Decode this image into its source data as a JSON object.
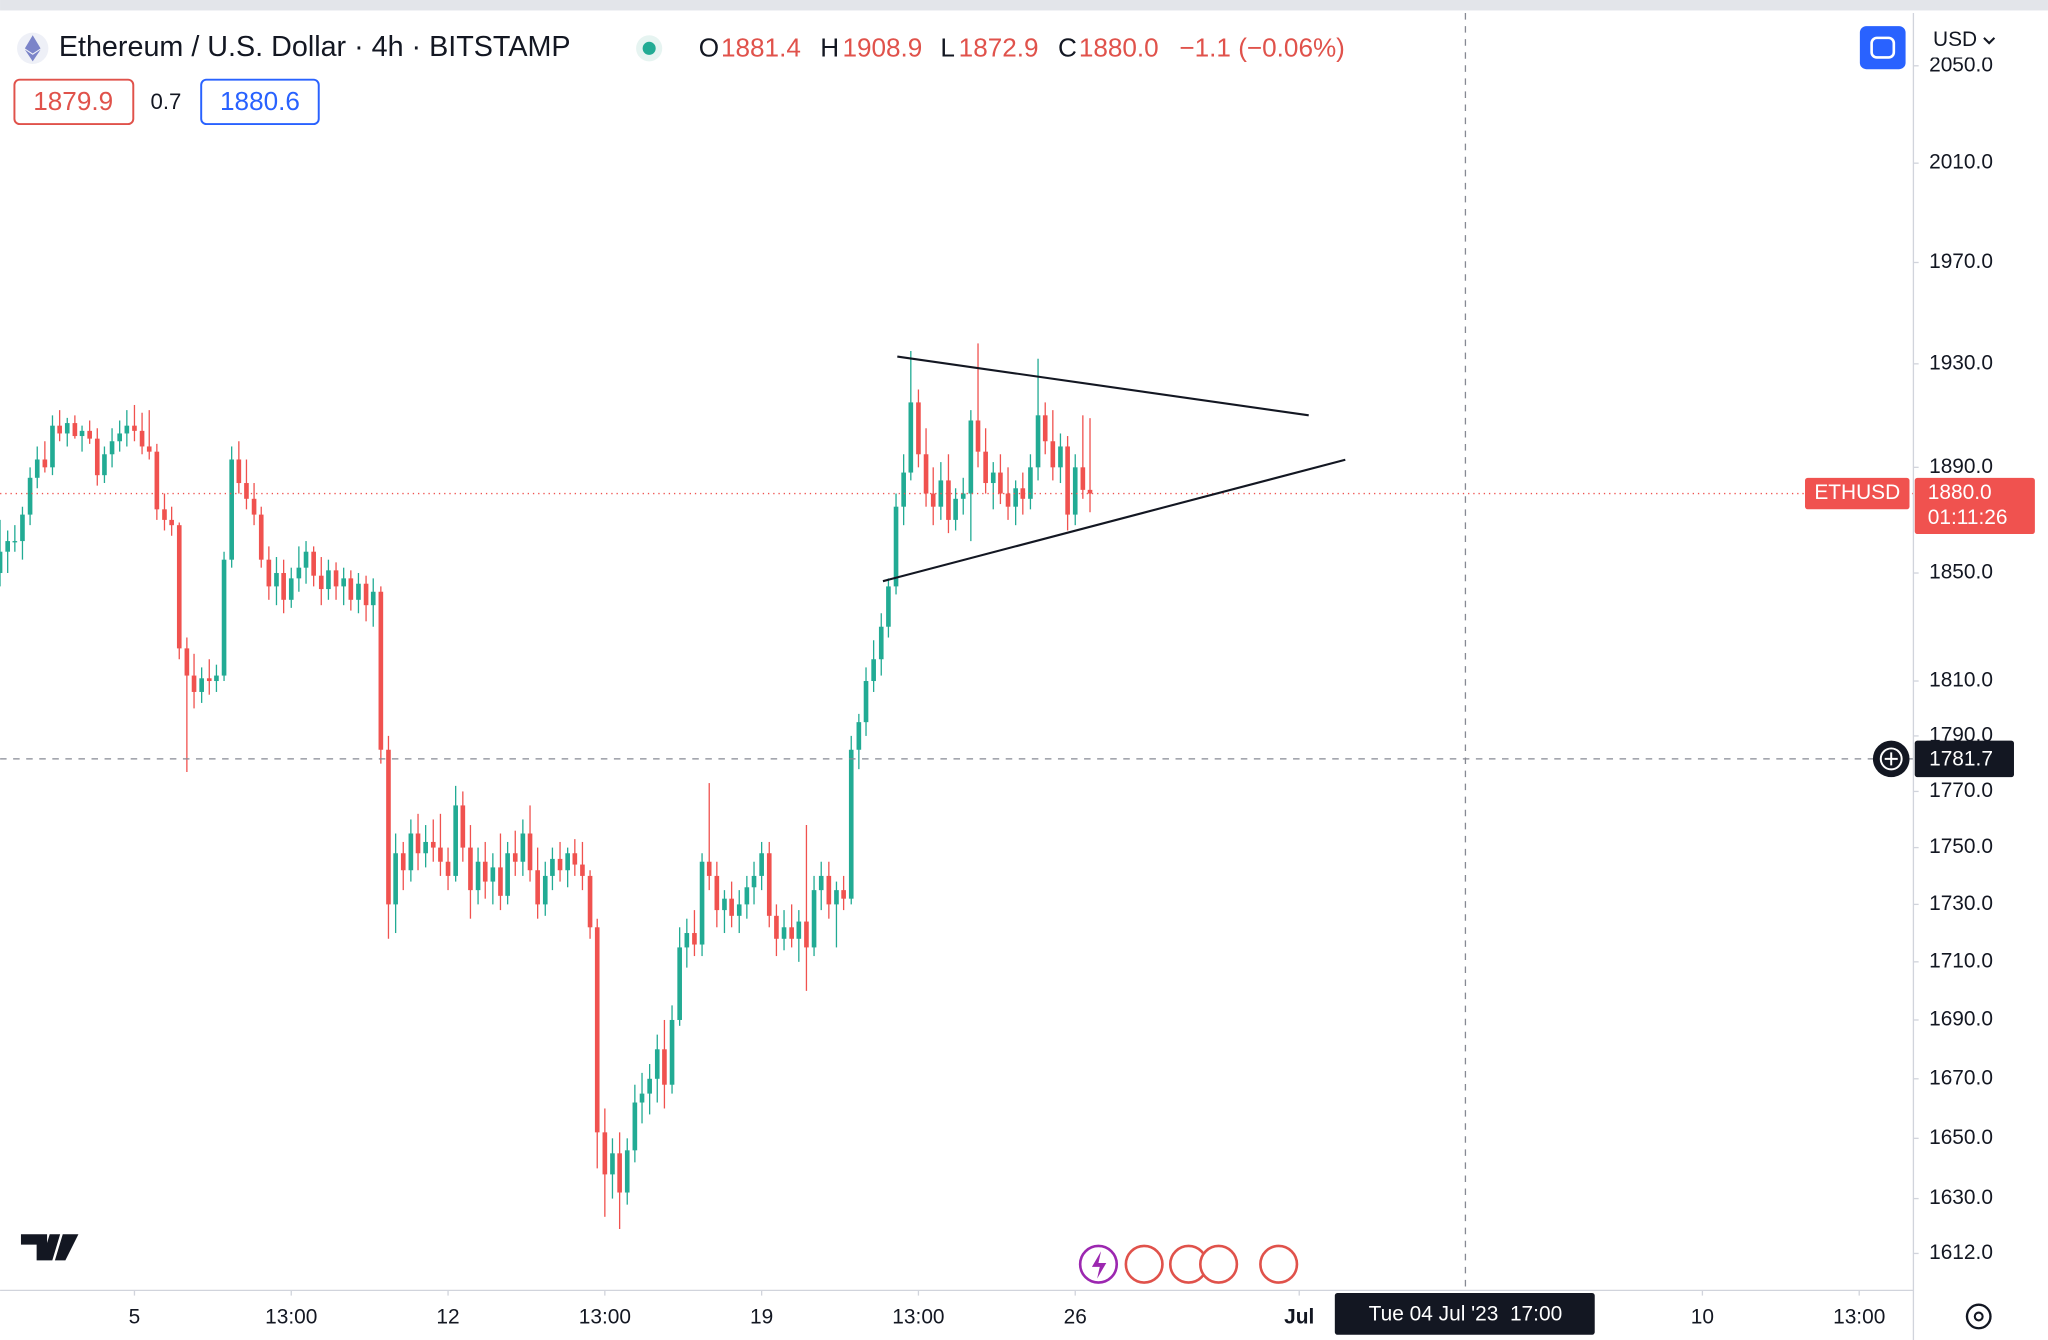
{
  "header": {
    "symbol_title": "Ethereum / U.S. Dollar · 4h · BITSTAMP",
    "ohlc": [
      {
        "key": "O",
        "value": "1881.4"
      },
      {
        "key": "H",
        "value": "1908.9"
      },
      {
        "key": "L",
        "value": "1872.9"
      },
      {
        "key": "C",
        "value": "1880.0"
      }
    ],
    "change": "−1.1 (−0.06%)",
    "bid": "1879.9",
    "spread": "0.7",
    "ask": "1880.6",
    "currency": "USD"
  },
  "chart_data": {
    "type": "candlestick",
    "log_scale": true,
    "grid": false,
    "up_color": "#22ab94",
    "down_color": "#f0524f",
    "xlim": [
      2,
      44.71
    ],
    "ylim": [
      1600,
      2072
    ],
    "xticks": [
      5,
      {
        "value": 8.5,
        "label": "13:00"
      },
      12,
      {
        "value": 15.5,
        "label": "13:00"
      },
      19,
      {
        "value": 22.5,
        "label": "13:00"
      },
      26,
      {
        "value": 31,
        "label": "Jul"
      },
      {
        "value": 40,
        "label": "10"
      },
      {
        "value": 43.5,
        "label": "13:00"
      }
    ],
    "yticks": [
      {
        "value": 2050,
        "label": "2050.0"
      },
      {
        "value": 2010,
        "label": "2010.0"
      },
      {
        "value": 1970,
        "label": "1970.0"
      },
      {
        "value": 1930,
        "label": "1930.0"
      },
      {
        "value": 1890,
        "label": "1890.0"
      },
      {
        "value": 1850,
        "label": "1850.0"
      },
      {
        "value": 1810,
        "label": "1810.0"
      },
      {
        "value": 1790,
        "label": "1790.0"
      },
      {
        "value": 1770,
        "label": "1770.0"
      },
      {
        "value": 1750,
        "label": "1750.0"
      },
      {
        "value": 1730,
        "label": "1730.0"
      },
      {
        "value": 1710,
        "label": "1710.0"
      },
      {
        "value": 1690,
        "label": "1690.0"
      },
      {
        "value": 1670,
        "label": "1670.0"
      },
      {
        "value": 1650,
        "label": "1650.0"
      },
      {
        "value": 1630,
        "label": "1630.0"
      },
      {
        "value": 1612,
        "label": "1612.0"
      }
    ],
    "last_price": {
      "symbol": "ETHUSD",
      "value": 1880,
      "label": "1880.0",
      "countdown": "01:11:26"
    },
    "crosshair": {
      "x": 34.71,
      "x_label": "Tue 04 Jul '23  17:00",
      "y": 1781.7
    },
    "candles": [
      [
        2,
        1850,
        1870,
        1845,
        1858
      ],
      [
        2.17,
        1858,
        1866,
        1850,
        1862
      ],
      [
        2.33,
        1862,
        1868,
        1858,
        1862
      ],
      [
        2.5,
        1862,
        1875,
        1855,
        1872
      ],
      [
        2.67,
        1872,
        1890,
        1868,
        1886
      ],
      [
        2.83,
        1886,
        1898,
        1882,
        1893
      ],
      [
        3,
        1893,
        1900,
        1888,
        1890
      ],
      [
        3.17,
        1890,
        1910,
        1887,
        1906
      ],
      [
        3.33,
        1906,
        1912,
        1900,
        1903
      ],
      [
        3.5,
        1903,
        1909,
        1898,
        1907
      ],
      [
        3.67,
        1907,
        1910,
        1901,
        1902
      ],
      [
        3.83,
        1902,
        1906,
        1896,
        1904
      ],
      [
        4,
        1904,
        1908,
        1899,
        1901
      ],
      [
        4.17,
        1901,
        1905,
        1883,
        1887
      ],
      [
        4.33,
        1887,
        1898,
        1884,
        1895
      ],
      [
        4.5,
        1895,
        1905,
        1890,
        1900
      ],
      [
        4.67,
        1900,
        1908,
        1896,
        1903
      ],
      [
        4.83,
        1903,
        1912,
        1898,
        1906
      ],
      [
        5,
        1906,
        1914,
        1900,
        1904
      ],
      [
        5.17,
        1904,
        1911,
        1895,
        1898
      ],
      [
        5.33,
        1898,
        1912,
        1893,
        1896
      ],
      [
        5.5,
        1896,
        1899,
        1870,
        1874
      ],
      [
        5.67,
        1874,
        1880,
        1866,
        1870
      ],
      [
        5.83,
        1870,
        1875,
        1864,
        1868
      ],
      [
        6,
        1868,
        1869,
        1818,
        1822
      ],
      [
        6.17,
        1822,
        1826,
        1777,
        1812
      ],
      [
        6.33,
        1812,
        1820,
        1800,
        1806
      ],
      [
        6.5,
        1806,
        1815,
        1802,
        1811
      ],
      [
        6.67,
        1811,
        1818,
        1805,
        1810
      ],
      [
        6.83,
        1810,
        1816,
        1806,
        1812
      ],
      [
        7,
        1812,
        1858,
        1810,
        1855
      ],
      [
        7.17,
        1855,
        1898,
        1852,
        1893
      ],
      [
        7.33,
        1893,
        1900,
        1880,
        1884
      ],
      [
        7.5,
        1884,
        1893,
        1874,
        1878
      ],
      [
        7.67,
        1878,
        1884,
        1868,
        1872
      ],
      [
        7.83,
        1872,
        1875,
        1852,
        1855
      ],
      [
        8,
        1855,
        1860,
        1840,
        1845
      ],
      [
        8.17,
        1845,
        1856,
        1838,
        1850
      ],
      [
        8.33,
        1850,
        1855,
        1835,
        1840
      ],
      [
        8.5,
        1840,
        1852,
        1837,
        1848
      ],
      [
        8.67,
        1848,
        1860,
        1843,
        1852
      ],
      [
        8.83,
        1852,
        1862,
        1846,
        1858
      ],
      [
        9,
        1858,
        1860,
        1845,
        1849
      ],
      [
        9.17,
        1849,
        1856,
        1838,
        1844
      ],
      [
        9.33,
        1844,
        1855,
        1840,
        1851
      ],
      [
        9.5,
        1851,
        1854,
        1840,
        1845
      ],
      [
        9.67,
        1845,
        1852,
        1838,
        1848
      ],
      [
        9.83,
        1848,
        1851,
        1836,
        1840
      ],
      [
        10,
        1840,
        1850,
        1835,
        1846
      ],
      [
        10.17,
        1846,
        1849,
        1832,
        1838
      ],
      [
        10.33,
        1838,
        1848,
        1830,
        1843
      ],
      [
        10.5,
        1843,
        1845,
        1780,
        1785
      ],
      [
        10.67,
        1785,
        1790,
        1718,
        1730
      ],
      [
        10.83,
        1730,
        1755,
        1720,
        1748
      ],
      [
        11,
        1748,
        1752,
        1735,
        1742
      ],
      [
        11.17,
        1742,
        1760,
        1738,
        1755
      ],
      [
        11.33,
        1755,
        1762,
        1742,
        1748
      ],
      [
        11.5,
        1748,
        1758,
        1743,
        1752
      ],
      [
        11.67,
        1752,
        1760,
        1745,
        1750
      ],
      [
        11.83,
        1750,
        1762,
        1740,
        1745
      ],
      [
        12,
        1745,
        1750,
        1735,
        1740
      ],
      [
        12.17,
        1740,
        1772,
        1738,
        1765
      ],
      [
        12.33,
        1765,
        1770,
        1745,
        1750
      ],
      [
        12.5,
        1750,
        1758,
        1725,
        1735
      ],
      [
        12.67,
        1735,
        1750,
        1730,
        1745
      ],
      [
        12.83,
        1745,
        1752,
        1732,
        1738
      ],
      [
        13,
        1738,
        1748,
        1730,
        1743
      ],
      [
        13.17,
        1743,
        1755,
        1728,
        1733
      ],
      [
        13.33,
        1733,
        1752,
        1730,
        1748
      ],
      [
        13.5,
        1748,
        1756,
        1740,
        1745
      ],
      [
        13.67,
        1745,
        1760,
        1740,
        1755
      ],
      [
        13.83,
        1755,
        1765,
        1738,
        1742
      ],
      [
        14,
        1742,
        1750,
        1725,
        1730
      ],
      [
        14.17,
        1730,
        1745,
        1726,
        1740
      ],
      [
        14.33,
        1740,
        1750,
        1735,
        1746
      ],
      [
        14.5,
        1746,
        1752,
        1738,
        1742
      ],
      [
        14.67,
        1742,
        1750,
        1736,
        1748
      ],
      [
        14.83,
        1748,
        1753,
        1740,
        1744
      ],
      [
        15,
        1744,
        1752,
        1735,
        1740
      ],
      [
        15.17,
        1740,
        1742,
        1718,
        1722
      ],
      [
        15.33,
        1722,
        1725,
        1640,
        1652
      ],
      [
        15.5,
        1652,
        1660,
        1624,
        1638
      ],
      [
        15.67,
        1638,
        1650,
        1630,
        1645
      ],
      [
        15.83,
        1645,
        1652,
        1620,
        1632
      ],
      [
        16,
        1632,
        1650,
        1628,
        1646
      ],
      [
        16.17,
        1646,
        1668,
        1642,
        1662
      ],
      [
        16.33,
        1662,
        1672,
        1655,
        1665
      ],
      [
        16.5,
        1665,
        1675,
        1658,
        1670
      ],
      [
        16.67,
        1670,
        1685,
        1662,
        1680
      ],
      [
        16.83,
        1680,
        1690,
        1660,
        1668
      ],
      [
        17,
        1668,
        1695,
        1665,
        1690
      ],
      [
        17.17,
        1690,
        1722,
        1688,
        1715
      ],
      [
        17.33,
        1715,
        1725,
        1708,
        1720
      ],
      [
        17.5,
        1720,
        1728,
        1712,
        1716
      ],
      [
        17.67,
        1716,
        1748,
        1712,
        1745
      ],
      [
        17.83,
        1745,
        1773,
        1735,
        1740
      ],
      [
        18,
        1740,
        1745,
        1722,
        1728
      ],
      [
        18.17,
        1728,
        1735,
        1720,
        1732
      ],
      [
        18.33,
        1732,
        1738,
        1722,
        1726
      ],
      [
        18.5,
        1726,
        1735,
        1720,
        1730
      ],
      [
        18.67,
        1730,
        1740,
        1725,
        1736
      ],
      [
        18.83,
        1736,
        1745,
        1730,
        1740
      ],
      [
        19,
        1740,
        1752,
        1735,
        1748
      ],
      [
        19.17,
        1748,
        1752,
        1722,
        1726
      ],
      [
        19.33,
        1726,
        1730,
        1712,
        1718
      ],
      [
        19.5,
        1718,
        1728,
        1714,
        1722
      ],
      [
        19.67,
        1722,
        1730,
        1715,
        1718
      ],
      [
        19.83,
        1718,
        1728,
        1710,
        1724
      ],
      [
        20,
        1724,
        1758,
        1700,
        1715
      ],
      [
        20.17,
        1715,
        1740,
        1712,
        1735
      ],
      [
        20.33,
        1735,
        1745,
        1728,
        1740
      ],
      [
        20.5,
        1740,
        1745,
        1725,
        1730
      ],
      [
        20.67,
        1730,
        1738,
        1715,
        1735
      ],
      [
        20.83,
        1735,
        1740,
        1728,
        1732
      ],
      [
        21,
        1732,
        1790,
        1730,
        1785
      ],
      [
        21.17,
        1785,
        1798,
        1778,
        1795
      ],
      [
        21.33,
        1795,
        1815,
        1790,
        1810
      ],
      [
        21.5,
        1810,
        1825,
        1806,
        1818
      ],
      [
        21.67,
        1818,
        1835,
        1812,
        1830
      ],
      [
        21.83,
        1830,
        1848,
        1826,
        1845
      ],
      [
        22,
        1845,
        1880,
        1842,
        1875
      ],
      [
        22.17,
        1875,
        1895,
        1868,
        1888
      ],
      [
        22.33,
        1888,
        1935,
        1885,
        1915
      ],
      [
        22.5,
        1915,
        1920,
        1890,
        1895
      ],
      [
        22.67,
        1895,
        1905,
        1875,
        1880
      ],
      [
        22.83,
        1880,
        1890,
        1868,
        1875
      ],
      [
        23,
        1875,
        1892,
        1870,
        1885
      ],
      [
        23.17,
        1885,
        1895,
        1865,
        1870
      ],
      [
        23.33,
        1870,
        1882,
        1866,
        1878
      ],
      [
        23.5,
        1878,
        1886,
        1872,
        1880
      ],
      [
        23.67,
        1880,
        1912,
        1862,
        1908
      ],
      [
        23.83,
        1908,
        1938,
        1890,
        1896
      ],
      [
        24,
        1896,
        1905,
        1880,
        1884
      ],
      [
        24.17,
        1884,
        1892,
        1874,
        1888
      ],
      [
        24.33,
        1888,
        1895,
        1876,
        1880
      ],
      [
        24.5,
        1880,
        1890,
        1870,
        1875
      ],
      [
        24.67,
        1875,
        1885,
        1868,
        1882
      ],
      [
        24.83,
        1882,
        1888,
        1872,
        1878
      ],
      [
        25,
        1878,
        1895,
        1874,
        1890
      ],
      [
        25.17,
        1890,
        1932,
        1885,
        1910
      ],
      [
        25.33,
        1910,
        1915,
        1895,
        1900
      ],
      [
        25.5,
        1900,
        1912,
        1885,
        1890
      ],
      [
        25.67,
        1890,
        1903,
        1884,
        1898
      ],
      [
        25.83,
        1898,
        1902,
        1866,
        1872
      ],
      [
        26,
        1872,
        1895,
        1868,
        1890
      ],
      [
        26.17,
        1890,
        1910,
        1878,
        1881.4
      ],
      [
        26.33,
        1881.4,
        1908.9,
        1872.9,
        1880
      ]
    ]
  }
}
